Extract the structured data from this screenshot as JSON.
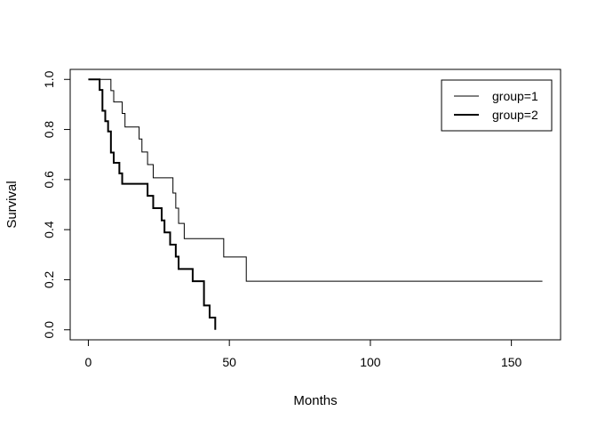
{
  "chart_data": {
    "type": "line",
    "step": true,
    "xlabel": "Months",
    "ylabel": "Survival",
    "xlim": [
      0,
      161
    ],
    "ylim": [
      0,
      1
    ],
    "xticks": [
      0,
      50,
      100,
      150
    ],
    "yticks": [
      0.0,
      0.2,
      0.4,
      0.6,
      0.8,
      1.0
    ],
    "xtick_labels": [
      "0",
      "50",
      "100",
      "150"
    ],
    "ytick_labels": [
      "0.0",
      "0.2",
      "0.4",
      "0.6",
      "0.8",
      "1.0"
    ],
    "grid": false,
    "legend": {
      "position": "top-right"
    },
    "series": [
      {
        "name": "group=1",
        "line_width": 1,
        "color": "#000000",
        "points": [
          [
            0,
            1.0
          ],
          [
            8,
            0.955
          ],
          [
            9,
            0.91
          ],
          [
            12,
            0.864
          ],
          [
            13,
            0.81
          ],
          [
            18,
            0.762
          ],
          [
            19,
            0.71
          ],
          [
            21,
            0.66
          ],
          [
            23,
            0.607
          ],
          [
            30,
            0.546
          ],
          [
            31,
            0.486
          ],
          [
            32,
            0.425
          ],
          [
            34,
            0.364
          ],
          [
            48,
            0.291
          ],
          [
            56,
            0.194
          ],
          [
            161,
            0.194
          ]
        ]
      },
      {
        "name": "group=2",
        "line_width": 2,
        "color": "#000000",
        "points": [
          [
            0,
            1.0
          ],
          [
            4,
            0.958
          ],
          [
            5,
            0.875
          ],
          [
            6,
            0.833
          ],
          [
            7,
            0.792
          ],
          [
            8,
            0.708
          ],
          [
            9,
            0.667
          ],
          [
            11,
            0.625
          ],
          [
            12,
            0.583
          ],
          [
            21,
            0.535
          ],
          [
            23,
            0.486
          ],
          [
            26,
            0.437
          ],
          [
            27,
            0.389
          ],
          [
            29,
            0.34
          ],
          [
            31,
            0.292
          ],
          [
            32,
            0.243
          ],
          [
            37,
            0.194
          ],
          [
            41,
            0.097
          ],
          [
            43,
            0.049
          ],
          [
            45,
            0.0
          ]
        ]
      }
    ]
  }
}
